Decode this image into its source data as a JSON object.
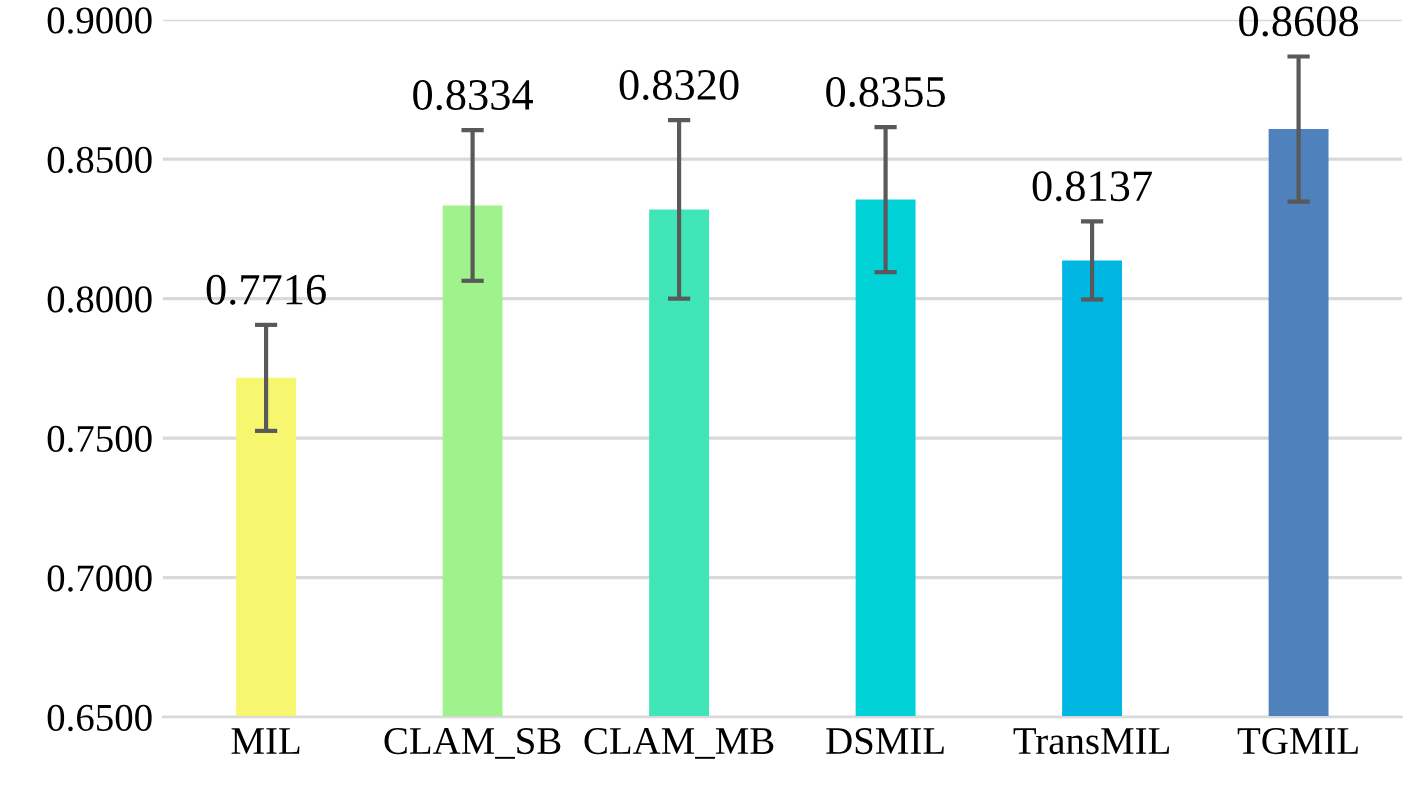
{
  "chart_data": {
    "type": "bar",
    "categories": [
      "MIL",
      "CLAM_SB",
      "CLAM_MB",
      "DSMIL",
      "TransMIL",
      "TGMIL"
    ],
    "values": [
      0.7716,
      0.8334,
      0.832,
      0.8355,
      0.8137,
      0.8608
    ],
    "errors": [
      0.019,
      0.027,
      0.032,
      0.026,
      0.014,
      0.026
    ],
    "colors": [
      "#f6f76f",
      "#a0f38c",
      "#40e6b8",
      "#00d2d8",
      "#00b6e2",
      "#4f81bd"
    ],
    "value_labels": [
      "0.7716",
      "0.8334",
      "0.8320",
      "0.8355",
      "0.8137",
      "0.8608"
    ],
    "ylim": [
      0.65,
      0.9
    ],
    "yticks": [
      {
        "value": 0.65,
        "label": "0.6500"
      },
      {
        "value": 0.7,
        "label": "0.7000"
      },
      {
        "value": 0.75,
        "label": "0.7500"
      },
      {
        "value": 0.8,
        "label": "0.8000"
      },
      {
        "value": 0.85,
        "label": "0.8500"
      },
      {
        "value": 0.9,
        "label": "0.9000"
      }
    ],
    "grid": "y"
  }
}
